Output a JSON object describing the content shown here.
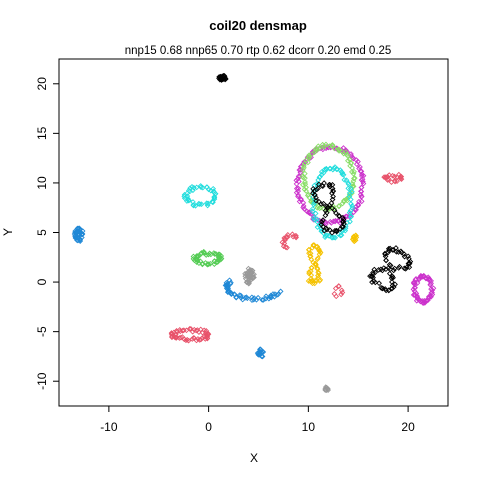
{
  "chart_data": {
    "type": "scatter",
    "title": "coil20 densmap",
    "subtitle": "nnp15 0.68 nnp65 0.70 rtp 0.62 dcorr 0.20 emd 0.25",
    "xlabel": "X",
    "ylabel": "Y",
    "xlim": [
      -15,
      24
    ],
    "ylim": [
      -12.5,
      22.5
    ],
    "xticks": [
      -10,
      0,
      10,
      20
    ],
    "yticks": [
      -10,
      -5,
      0,
      5,
      10,
      15,
      20
    ],
    "xtick_labels": [
      "-10",
      "0",
      "10",
      "20"
    ],
    "ytick_labels": [
      "-10",
      "-5",
      "0",
      "5",
      "10",
      "15",
      "20"
    ],
    "grid": false,
    "legend": "none",
    "marker": "open-diamond",
    "clusters": [
      {
        "shape": "blob",
        "color": "#000000",
        "cx": 1.4,
        "cy": 20.6,
        "rx": 0.4,
        "ry": 0.25,
        "n": 26
      },
      {
        "shape": "blob",
        "color": "#1f88d6",
        "cx": -13.0,
        "cy": 4.8,
        "rx": 0.45,
        "ry": 0.7,
        "n": 36
      },
      {
        "shape": "ring",
        "color": "#e8536b",
        "cx": 18.5,
        "cy": 10.5,
        "rx": 0.8,
        "ry": 0.25,
        "n": 22
      },
      {
        "shape": "ring",
        "color": "#cc33cc",
        "cx": 21.5,
        "cy": -0.7,
        "rx": 0.9,
        "ry": 1.3,
        "n": 60
      },
      {
        "shape": "ring",
        "color": "#55cc55",
        "cx": -0.1,
        "cy": 2.4,
        "rx": 1.3,
        "ry": 0.5,
        "n": 50
      },
      {
        "shape": "ring",
        "color": "#e8536b",
        "cx": -1.8,
        "cy": -5.3,
        "rx": 1.8,
        "ry": 0.45,
        "n": 60
      },
      {
        "shape": "ring",
        "color": "#cc33cc",
        "cx": 12.2,
        "cy": 9.8,
        "rx": 3.3,
        "ry": 3.8,
        "n": 120
      },
      {
        "shape": "ring",
        "color": "#88dd66",
        "cx": 12.0,
        "cy": 10.6,
        "rx": 2.5,
        "ry": 3.2,
        "n": 90
      },
      {
        "shape": "ring",
        "color": "#22dddd",
        "cx": 12.4,
        "cy": 8.0,
        "rx": 1.9,
        "ry": 3.5,
        "n": 80
      },
      {
        "shape": "ring",
        "color": "#22dddd",
        "cx": -0.8,
        "cy": 8.7,
        "rx": 1.5,
        "ry": 0.9,
        "n": 45
      },
      {
        "shape": "fig8",
        "color": "#000000",
        "cx": 18.2,
        "cy": 1.3,
        "ax": 1.6,
        "ay": 2.0,
        "tilt": -0.6,
        "n": 70
      },
      {
        "shape": "fig8",
        "color": "#000000",
        "cx": 12.0,
        "cy": 7.5,
        "ax": 1.3,
        "ay": 2.4,
        "tilt": 0.3,
        "n": 60
      },
      {
        "shape": "fig8",
        "color": "#f5c200",
        "cx": 10.6,
        "cy": 1.8,
        "ax": 0.6,
        "ay": 1.8,
        "tilt": 0.0,
        "n": 50
      },
      {
        "shape": "blob",
        "color": "#f5c200",
        "cx": 14.6,
        "cy": 4.4,
        "rx": 0.25,
        "ry": 0.45,
        "n": 14
      },
      {
        "shape": "arc",
        "color": "#1f88d6",
        "cx": 4.6,
        "cy": -0.5,
        "rx": 2.8,
        "ry": 1.2,
        "a0": 2.6,
        "a1": 5.8,
        "n": 50
      },
      {
        "shape": "blob",
        "color": "#999999",
        "cx": 4.1,
        "cy": 0.6,
        "rx": 0.5,
        "ry": 0.8,
        "n": 36
      },
      {
        "shape": "blob",
        "color": "#1f88d6",
        "cx": 5.2,
        "cy": -7.2,
        "rx": 0.3,
        "ry": 0.5,
        "n": 18
      },
      {
        "shape": "blob",
        "color": "#999999",
        "cx": 11.8,
        "cy": -10.8,
        "rx": 0.2,
        "ry": 0.25,
        "n": 10
      },
      {
        "shape": "arc",
        "color": "#e8536b",
        "cx": 8.2,
        "cy": 4.0,
        "rx": 0.7,
        "ry": 0.7,
        "a0": 0.5,
        "a1": 4.2,
        "n": 16
      },
      {
        "shape": "arc",
        "color": "#e8536b",
        "cx": 13.0,
        "cy": -0.9,
        "rx": 0.3,
        "ry": 0.5,
        "a0": 0.0,
        "a1": 6.2,
        "n": 8
      }
    ]
  }
}
